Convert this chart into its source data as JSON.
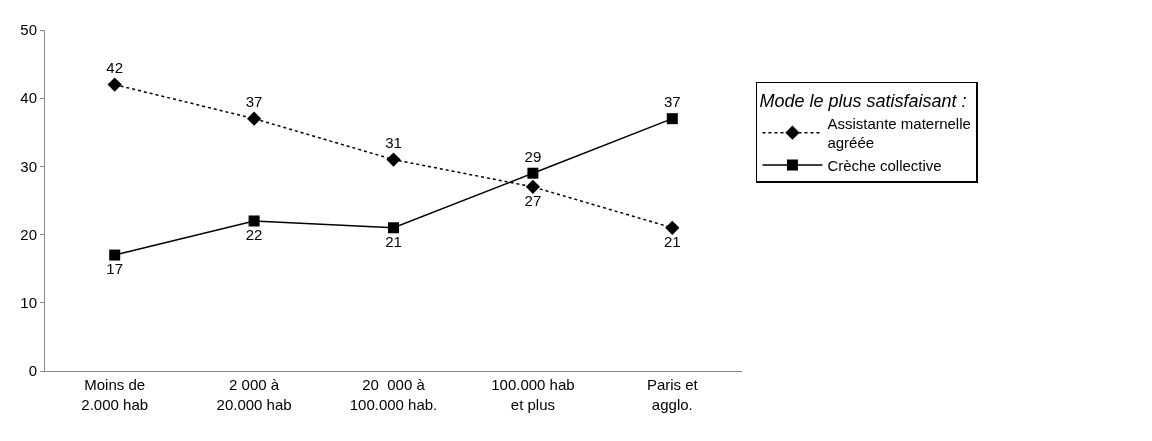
{
  "chart_data": {
    "type": "line",
    "categories": [
      "Moins de\n2.000 hab",
      "2 000 à\n20.000 hab",
      "20  000 à\n100.000 hab.",
      "100.000 hab\net plus",
      "Paris et\nagglo."
    ],
    "series": [
      {
        "name": "Assistante maternelle\nagréée",
        "color": "#000000",
        "values": [
          42,
          37,
          31,
          27,
          21
        ],
        "marker": "diamond",
        "line_style": "dotted"
      },
      {
        "name": "Crèche collective",
        "color": "#000000",
        "values": [
          17,
          22,
          21,
          29,
          37
        ],
        "marker": "square",
        "line_style": "solid"
      }
    ],
    "ylim": [
      0,
      50
    ],
    "yticks": [
      0,
      10,
      20,
      30,
      40,
      50
    ],
    "legend": "right",
    "legend_title": "Mode le plus satisfaisant :",
    "data_labels": true
  }
}
